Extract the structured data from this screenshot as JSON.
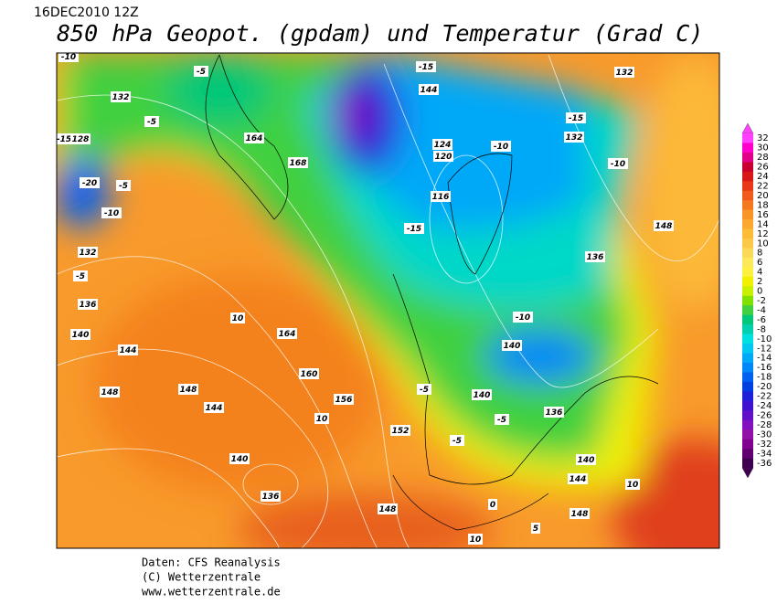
{
  "header": {
    "date": "16DEC2010 12Z",
    "title": "850 hPa Geopot. (gpdam) und  Temperatur (Grad C)"
  },
  "footer": {
    "lines": [
      "Daten: CFS Reanalysis",
      "(C) Wetterzentrale",
      "www.wetterzentrale.de"
    ]
  },
  "colorbar": [
    {
      "value": 32,
      "color": "#ff40ff"
    },
    {
      "value": 30,
      "color": "#ff00cc"
    },
    {
      "value": 28,
      "color": "#e0008a"
    },
    {
      "value": 26,
      "color": "#c80030"
    },
    {
      "value": 24,
      "color": "#d81818"
    },
    {
      "value": 22,
      "color": "#e83818"
    },
    {
      "value": 20,
      "color": "#f05a1c"
    },
    {
      "value": 18,
      "color": "#f47820"
    },
    {
      "value": 16,
      "color": "#f89428"
    },
    {
      "value": 14,
      "color": "#fca830"
    },
    {
      "value": 12,
      "color": "#fcbc38"
    },
    {
      "value": 10,
      "color": "#fcc848"
    },
    {
      "value": 8,
      "color": "#fcd858"
    },
    {
      "value": 6,
      "color": "#fce858"
    },
    {
      "value": 4,
      "color": "#fcf040"
    },
    {
      "value": 2,
      "color": "#f0f000"
    },
    {
      "value": 0,
      "color": "#c8f000"
    },
    {
      "value": -2,
      "color": "#80e000"
    },
    {
      "value": -4,
      "color": "#40d040"
    },
    {
      "value": -6,
      "color": "#00c878"
    },
    {
      "value": -8,
      "color": "#00d0b0"
    },
    {
      "value": -10,
      "color": "#00e0e0"
    },
    {
      "value": -12,
      "color": "#00c8f0"
    },
    {
      "value": -14,
      "color": "#00a8f8"
    },
    {
      "value": -16,
      "color": "#0088f8"
    },
    {
      "value": -18,
      "color": "#0060f0"
    },
    {
      "value": -20,
      "color": "#0040e0"
    },
    {
      "value": -22,
      "color": "#2020d8"
    },
    {
      "value": -24,
      "color": "#4010d0"
    },
    {
      "value": -26,
      "color": "#6010c8"
    },
    {
      "value": -28,
      "color": "#8010c0"
    },
    {
      "value": -30,
      "color": "#9010a8"
    },
    {
      "value": -32,
      "color": "#800090"
    },
    {
      "value": -34,
      "color": "#600070"
    },
    {
      "value": -36,
      "color": "#400050"
    }
  ],
  "contour_labels": [
    "-10",
    "-5",
    "132",
    "-5",
    "-15",
    "128",
    "164",
    "168",
    "-20",
    "-5",
    "-10",
    "132",
    "-5",
    "136",
    "140",
    "144",
    "10",
    "164",
    "160",
    "156",
    "10",
    "148",
    "148",
    "144",
    "140",
    "136",
    "152",
    "148",
    "-15",
    "144",
    "124",
    "120",
    "116",
    "-15",
    "-10",
    "132",
    "-15",
    "-10",
    "148",
    "136",
    "-10",
    "140",
    "-5",
    "140",
    "136",
    "-5",
    "-5",
    "140",
    "144",
    "10",
    "148",
    "10",
    "5",
    "132",
    "0"
  ]
}
